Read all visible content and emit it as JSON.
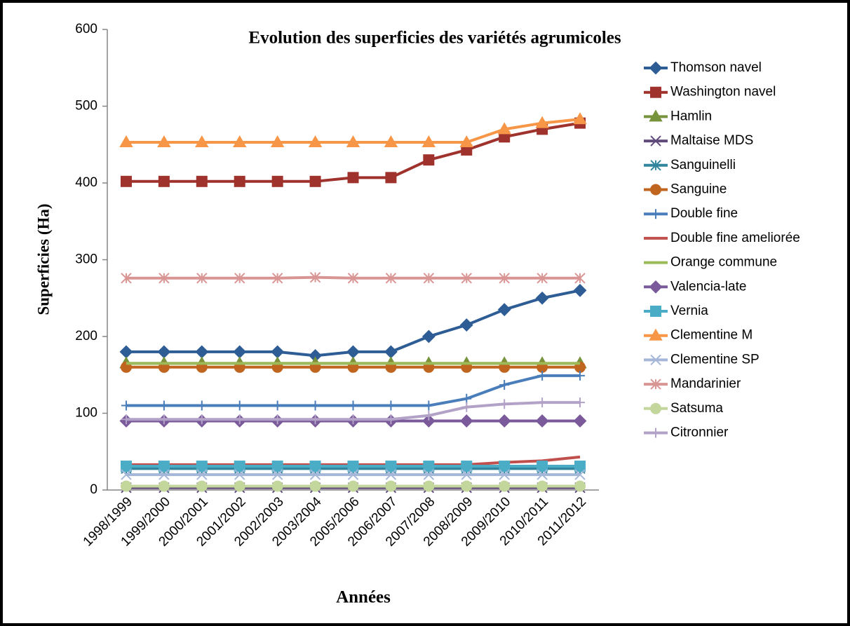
{
  "chart_data": {
    "type": "line",
    "title": "Evolution des superficies des variétés agrumicoles",
    "x_label": "Années",
    "y_label": "Superficies (Ha)",
    "categories": [
      "1998/1999",
      "1999/2000",
      "2000/2001",
      "2001/2002",
      "2002/2003",
      "2003/2004",
      "2005/2006",
      "2006/2007",
      "2007/2008",
      "2008/2009",
      "2009/2010",
      "2010/2011",
      "2011/2012"
    ],
    "ylim": [
      0,
      600
    ],
    "yticks": [
      0,
      100,
      200,
      300,
      400,
      500,
      600
    ],
    "legend": "right",
    "series": [
      {
        "name": "Thomson navel",
        "color": "#2e5d95",
        "marker": "diamond",
        "values": [
          180,
          180,
          180,
          180,
          180,
          175,
          180,
          180,
          200,
          215,
          235,
          250,
          260
        ]
      },
      {
        "name": "Washington navel",
        "color": "#a0322d",
        "marker": "square",
        "values": [
          402,
          402,
          402,
          402,
          402,
          402,
          407,
          407,
          430,
          443,
          460,
          470,
          478
        ]
      },
      {
        "name": "Hamlin",
        "color": "#77933c",
        "marker": "triangle",
        "values": [
          165,
          165,
          165,
          165,
          165,
          165,
          165,
          165,
          165,
          165,
          165,
          165,
          165
        ]
      },
      {
        "name": "Maltaise MDS",
        "color": "#5f4a7b",
        "marker": "x",
        "values": [
          3,
          3,
          3,
          3,
          3,
          3,
          3,
          3,
          3,
          3,
          3,
          3,
          3
        ]
      },
      {
        "name": "Sanguinelli",
        "color": "#31859c",
        "marker": "asterisk",
        "values": [
          28,
          28,
          28,
          28,
          28,
          28,
          28,
          28,
          28,
          28,
          28,
          28,
          28
        ]
      },
      {
        "name": "Sanguine",
        "color": "#c0651f",
        "marker": "circle",
        "values": [
          160,
          160,
          160,
          160,
          160,
          160,
          160,
          160,
          160,
          160,
          160,
          160,
          160
        ]
      },
      {
        "name": "Double fine",
        "color": "#4a7ebb",
        "marker": "plus",
        "values": [
          110,
          110,
          110,
          110,
          110,
          110,
          110,
          110,
          110,
          119,
          137,
          149,
          149
        ]
      },
      {
        "name": "Double fine ameliorée",
        "color": "#c0504d",
        "marker": "none",
        "values": [
          33,
          33,
          33,
          33,
          33,
          33,
          33,
          33,
          33,
          33,
          36,
          38,
          43
        ]
      },
      {
        "name": "Orange commune",
        "color": "#9bbb59",
        "marker": "none",
        "values": [
          165,
          165,
          165,
          165,
          165,
          165,
          165,
          165,
          165,
          165,
          165,
          165,
          165
        ]
      },
      {
        "name": "Valencia-late",
        "color": "#7a5a9a",
        "marker": "diamond",
        "values": [
          90,
          90,
          90,
          90,
          90,
          90,
          90,
          90,
          90,
          90,
          90,
          90,
          90
        ]
      },
      {
        "name": "Vernia",
        "color": "#4bacc6",
        "marker": "square",
        "values": [
          31,
          31,
          31,
          31,
          31,
          31,
          31,
          31,
          31,
          31,
          31,
          31,
          31
        ]
      },
      {
        "name": "Clementine M",
        "color": "#f79646",
        "marker": "triangle",
        "values": [
          453,
          453,
          453,
          453,
          453,
          453,
          453,
          453,
          453,
          453,
          470,
          478,
          483
        ]
      },
      {
        "name": "Clementine SP",
        "color": "#a5b7d9",
        "marker": "x",
        "values": [
          20,
          20,
          20,
          20,
          20,
          20,
          20,
          20,
          20,
          20,
          20,
          20,
          20
        ]
      },
      {
        "name": "Mandarinier",
        "color": "#d99594",
        "marker": "asterisk",
        "values": [
          276,
          276,
          276,
          276,
          276,
          277,
          276,
          276,
          276,
          276,
          276,
          276,
          276
        ]
      },
      {
        "name": "Satsuma",
        "color": "#c3d69b",
        "marker": "circle",
        "values": [
          5,
          5,
          5,
          5,
          5,
          5,
          5,
          5,
          5,
          5,
          5,
          5,
          5
        ]
      },
      {
        "name": "Citronnier",
        "color": "#b3a2c7",
        "marker": "plus",
        "values": [
          92,
          92,
          92,
          92,
          92,
          92,
          92,
          92,
          97,
          108,
          112,
          114,
          114
        ]
      }
    ]
  }
}
